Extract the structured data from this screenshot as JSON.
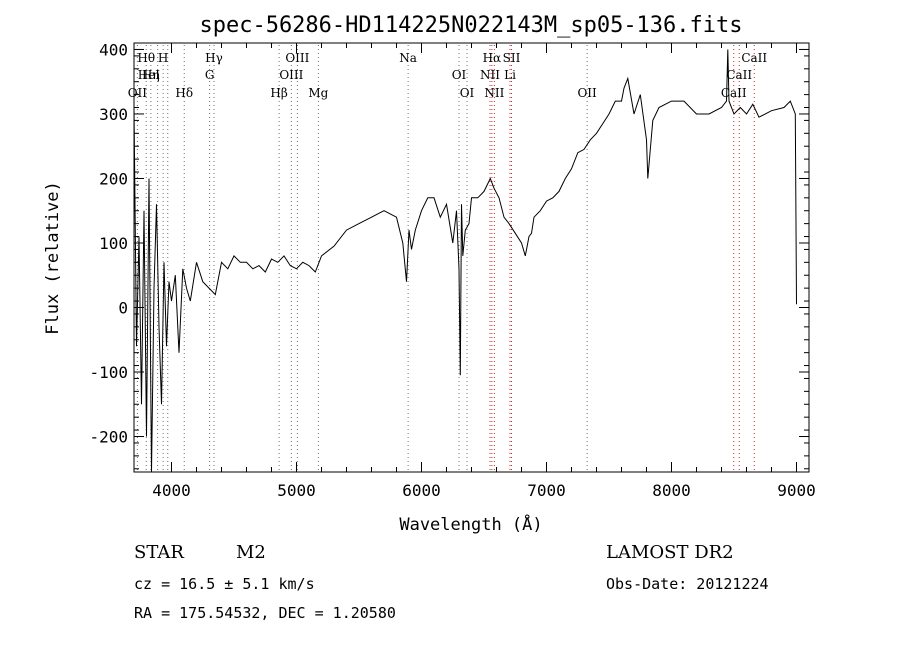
{
  "chart_data": {
    "type": "line",
    "title": "spec-56286-HD114225N022143M_sp05-136.fits",
    "xlabel": "Wavelength (Å)",
    "ylabel": "Flux (relative)",
    "xlim": [
      3700,
      9100
    ],
    "ylim": [
      -255,
      410
    ],
    "xticks": [
      4000,
      5000,
      6000,
      7000,
      8000,
      9000
    ],
    "yticks": [
      -200,
      -100,
      0,
      100,
      200,
      300,
      400
    ],
    "grid": false,
    "series": [
      {
        "x": [
          3700,
          3720,
          3740,
          3760,
          3780,
          3800,
          3820,
          3840,
          3860,
          3880,
          3900,
          3920,
          3940,
          3960,
          3980,
          4000,
          4030,
          4060,
          4090,
          4120,
          4150,
          4200,
          4250,
          4300,
          4350,
          4400,
          4450,
          4500,
          4550,
          4600,
          4650,
          4700,
          4750,
          4800,
          4850,
          4900,
          4950,
          5000,
          5050,
          5100,
          5150,
          5200,
          5300,
          5400,
          5500,
          5600,
          5700,
          5800,
          5850,
          5880,
          5900,
          5920,
          5950,
          6000,
          6050,
          6100,
          6150,
          6200,
          6250,
          6280,
          6300,
          6310,
          6320,
          6330,
          6350,
          6380,
          6400,
          6450,
          6500,
          6550,
          6580,
          6620,
          6660,
          6700,
          6750,
          6800,
          6830,
          6860,
          6880,
          6900,
          6950,
          7000,
          7050,
          7100,
          7150,
          7200,
          7250,
          7300,
          7350,
          7400,
          7450,
          7500,
          7550,
          7600,
          7620,
          7650,
          7700,
          7750,
          7800,
          7810,
          7850,
          7900,
          8000,
          8100,
          8200,
          8300,
          8400,
          8440,
          8450,
          8460,
          8500,
          8550,
          8600,
          8650,
          8700,
          8800,
          8900,
          8950,
          8990,
          9000
        ],
        "y": [
          310,
          -60,
          110,
          -150,
          150,
          -200,
          200,
          -260,
          30,
          160,
          -30,
          -150,
          70,
          -60,
          40,
          10,
          50,
          -70,
          60,
          30,
          10,
          70,
          40,
          30,
          20,
          70,
          60,
          80,
          70,
          70,
          60,
          65,
          55,
          75,
          70,
          80,
          65,
          60,
          70,
          65,
          55,
          80,
          95,
          120,
          130,
          140,
          150,
          140,
          100,
          40,
          120,
          90,
          120,
          150,
          170,
          170,
          140,
          160,
          100,
          150,
          60,
          -105,
          160,
          80,
          120,
          130,
          170,
          170,
          180,
          200,
          185,
          170,
          140,
          130,
          115,
          100,
          80,
          110,
          115,
          140,
          150,
          165,
          170,
          180,
          200,
          215,
          240,
          245,
          260,
          270,
          285,
          300,
          320,
          320,
          340,
          355,
          300,
          330,
          260,
          200,
          290,
          310,
          320,
          320,
          300,
          300,
          310,
          320,
          400,
          320,
          300,
          310,
          300,
          315,
          295,
          305,
          310,
          320,
          300,
          5
        ]
      }
    ],
    "annotations": [
      {
        "text": "Hθ",
        "x": 3798
      },
      {
        "text": "HeI",
        "x": 3819
      },
      {
        "text": "OII",
        "x": 3727
      },
      {
        "text": "H",
        "x": 3933
      },
      {
        "text": "Hη",
        "x": 3835
      },
      {
        "text": "Hδ",
        "x": 4102
      },
      {
        "text": "Hγ",
        "x": 4340
      },
      {
        "text": "G",
        "x": 4305
      },
      {
        "text": "Hβ",
        "x": 4861
      },
      {
        "text": "OIII",
        "x": 5007
      },
      {
        "text": "OIII",
        "x": 4959
      },
      {
        "text": "Mg",
        "x": 5175
      },
      {
        "text": "Na",
        "x": 5893
      },
      {
        "text": "OI",
        "x": 6300
      },
      {
        "text": "OI",
        "x": 6364
      },
      {
        "text": "Hα",
        "x": 6563
      },
      {
        "text": "NII",
        "x": 6548
      },
      {
        "text": "NII",
        "x": 6583
      },
      {
        "text": "SII",
        "x": 6720
      },
      {
        "text": "Li",
        "x": 6708
      },
      {
        "text": "OII",
        "x": 7325
      },
      {
        "text": "CaII",
        "x": 8662
      },
      {
        "text": "CaII",
        "x": 8542
      },
      {
        "text": "CaII",
        "x": 8498
      }
    ],
    "line_markers": [
      {
        "x": 3727,
        "color": "#707070"
      },
      {
        "x": 3798,
        "color": "#707070"
      },
      {
        "x": 3835,
        "color": "#707070"
      },
      {
        "x": 3889,
        "color": "#707070"
      },
      {
        "x": 3933,
        "color": "#707070"
      },
      {
        "x": 3970,
        "color": "#707070"
      },
      {
        "x": 4102,
        "color": "#707070"
      },
      {
        "x": 4305,
        "color": "#707070"
      },
      {
        "x": 4340,
        "color": "#707070"
      },
      {
        "x": 4861,
        "color": "#707070"
      },
      {
        "x": 4959,
        "color": "#707070"
      },
      {
        "x": 5007,
        "color": "#707070"
      },
      {
        "x": 5175,
        "color": "#707070"
      },
      {
        "x": 5893,
        "color": "#707070"
      },
      {
        "x": 6300,
        "color": "#707070"
      },
      {
        "x": 6364,
        "color": "#707070"
      },
      {
        "x": 6548,
        "color": "#c03030"
      },
      {
        "x": 6563,
        "color": "#c03030"
      },
      {
        "x": 6583,
        "color": "#c03030"
      },
      {
        "x": 6708,
        "color": "#c03030"
      },
      {
        "x": 6720,
        "color": "#c03030"
      },
      {
        "x": 7325,
        "color": "#707070"
      },
      {
        "x": 8498,
        "color": "#c03030"
      },
      {
        "x": 8542,
        "color": "#c03030"
      },
      {
        "x": 8662,
        "color": "#c03030"
      }
    ]
  },
  "info": {
    "object_class": "STAR",
    "subclass": "M2",
    "survey": "LAMOST DR2",
    "redshift": "cz = 16.5 ± 5.1 km/s",
    "obs_date": "Obs-Date: 20121224",
    "coords": "RA = 175.54532, DEC =    1.20580"
  }
}
